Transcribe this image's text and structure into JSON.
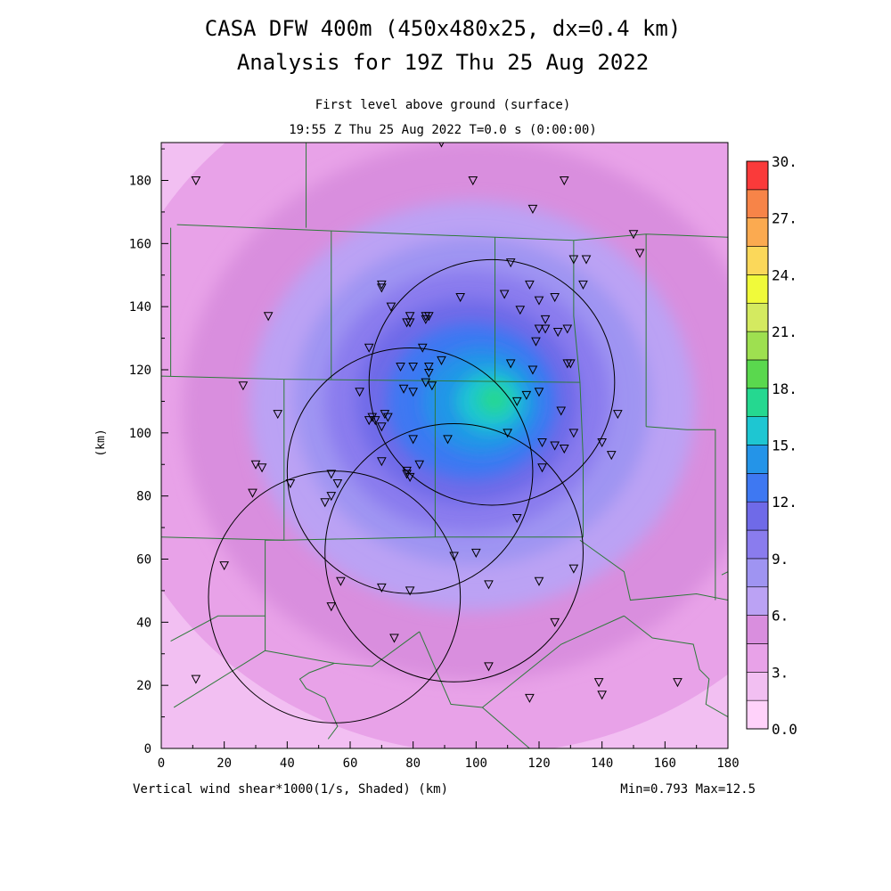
{
  "titles": {
    "line1": "CASA DFW 400m (450x480x25, dx=0.4 km)",
    "line2": "Analysis for 19Z Thu 25 Aug 2022",
    "level": "First level above ground (surface)",
    "time": "19:55 Z Thu 25 Aug 2022    T=0.0 s (0:00:00)"
  },
  "footer": {
    "field": "Vertical wind shear*1000(1/s, Shaded)  (km)",
    "minmax": "Min=0.793 Max=12.5"
  },
  "chart_data": {
    "type": "heatmap",
    "variable": "Vertical wind shear*1000 (1/s)",
    "xlabel": "",
    "ylabel": "(km)",
    "xlim": [
      0,
      180
    ],
    "ylim": [
      0,
      192
    ],
    "x_ticks": [
      0,
      20,
      40,
      60,
      80,
      100,
      120,
      140,
      160,
      180
    ],
    "y_ticks": [
      0,
      20,
      40,
      60,
      80,
      100,
      120,
      140,
      160,
      180
    ],
    "min": 0.793,
    "max": 12.5,
    "colorbar": {
      "levels": [
        0,
        1.5,
        3,
        4.5,
        6,
        7.5,
        9,
        10.5,
        12,
        13.5,
        15,
        16.5,
        18,
        19.5,
        21,
        22.5,
        24,
        25.5,
        27,
        28.5,
        30
      ],
      "labels": [
        "0.0",
        "3.",
        "6.",
        "9.",
        "12.",
        "15.",
        "18.",
        "21.",
        "24.",
        "27.",
        "30."
      ],
      "colors": [
        "#ffd2fa",
        "#f2bff2",
        "#e8a2e8",
        "#d98ede",
        "#bba2f4",
        "#9f94f2",
        "#8a7cee",
        "#6f6ae8",
        "#3e78f2",
        "#2494e8",
        "#1ec6d2",
        "#25d890",
        "#5ad84e",
        "#9ee050",
        "#d4ea60",
        "#f0fa3a",
        "#fbd85a",
        "#fbaa50",
        "#f78448",
        "#fa3a3a",
        "#fa3a82",
        "#fb82c8"
      ]
    },
    "field_blob": {
      "x": 103,
      "y": 110,
      "peak": 12.5
    },
    "radar_rings": [
      {
        "x": 79,
        "y": 88,
        "r": 39
      },
      {
        "x": 105,
        "y": 116,
        "r": 39
      },
      {
        "x": 93,
        "y": 62,
        "r": 41
      },
      {
        "x": 55,
        "y": 48,
        "r": 40
      }
    ],
    "county_lines": [
      [
        [
          0,
          184
        ],
        [
          0,
          192
        ]
      ],
      [
        [
          46,
          192
        ],
        [
          46,
          165
        ]
      ],
      [
        [
          3,
          165
        ],
        [
          3,
          118
        ]
      ],
      [
        [
          0,
          118
        ],
        [
          39,
          117
        ]
      ],
      [
        [
          5,
          166
        ],
        [
          54,
          164
        ],
        [
          106,
          162
        ],
        [
          131,
          161
        ],
        [
          154,
          163
        ],
        [
          180,
          162
        ]
      ],
      [
        [
          54,
          164
        ],
        [
          54,
          117
        ]
      ],
      [
        [
          106,
          162
        ],
        [
          106,
          116
        ]
      ],
      [
        [
          131,
          161
        ],
        [
          131,
          137
        ],
        [
          133,
          116
        ],
        [
          134,
          92
        ],
        [
          134,
          67
        ]
      ],
      [
        [
          154,
          163
        ],
        [
          154,
          102
        ]
      ],
      [
        [
          39,
          117
        ],
        [
          133,
          116
        ]
      ],
      [
        [
          39,
          117
        ],
        [
          39,
          66
        ],
        [
          0,
          67
        ]
      ],
      [
        [
          39,
          66
        ],
        [
          87,
          67
        ],
        [
          134,
          67
        ]
      ],
      [
        [
          87,
          67
        ],
        [
          87,
          116
        ]
      ],
      [
        [
          39,
          66
        ],
        [
          33,
          66
        ],
        [
          33,
          42
        ],
        [
          18,
          42
        ],
        [
          3,
          34
        ]
      ],
      [
        [
          33,
          42
        ],
        [
          33,
          31
        ],
        [
          4,
          13
        ]
      ],
      [
        [
          133,
          66
        ],
        [
          147,
          56
        ],
        [
          149,
          47
        ],
        [
          170,
          49
        ],
        [
          180,
          47
        ]
      ],
      [
        [
          154,
          102
        ],
        [
          167,
          101
        ],
        [
          176,
          101
        ],
        [
          176,
          47
        ]
      ],
      [
        [
          33,
          31
        ],
        [
          55,
          27
        ],
        [
          67,
          26
        ],
        [
          82,
          37
        ]
      ],
      [
        [
          82,
          37
        ],
        [
          92,
          14
        ],
        [
          102,
          13
        ],
        [
          127,
          33
        ],
        [
          147,
          42
        ]
      ],
      [
        [
          102,
          13
        ],
        [
          117,
          0
        ]
      ],
      [
        [
          55,
          27
        ],
        [
          47,
          24
        ],
        [
          44,
          22
        ],
        [
          46,
          19
        ],
        [
          52,
          16
        ],
        [
          56,
          7
        ],
        [
          53,
          3
        ]
      ],
      [
        [
          147,
          42
        ],
        [
          156,
          35
        ],
        [
          169,
          33
        ],
        [
          171,
          25
        ],
        [
          174,
          22
        ],
        [
          173,
          14
        ],
        [
          180,
          10
        ]
      ],
      [
        [
          0,
          42
        ],
        [
          0,
          39
        ]
      ],
      [
        [
          180,
          56
        ],
        [
          178,
          55
        ]
      ]
    ],
    "stations": [
      [
        11,
        180
      ],
      [
        89,
        192
      ],
      [
        99,
        180
      ],
      [
        128,
        180
      ],
      [
        118,
        171
      ],
      [
        150,
        163
      ],
      [
        152,
        157
      ],
      [
        111,
        154
      ],
      [
        131,
        155
      ],
      [
        135,
        155
      ],
      [
        117,
        147
      ],
      [
        134,
        147
      ],
      [
        70,
        147
      ],
      [
        70,
        146
      ],
      [
        73,
        140
      ],
      [
        95,
        143
      ],
      [
        109,
        144
      ],
      [
        114,
        139
      ],
      [
        120,
        142
      ],
      [
        125,
        143
      ],
      [
        122,
        136
      ],
      [
        120,
        133
      ],
      [
        122,
        133
      ],
      [
        126,
        132
      ],
      [
        129,
        133
      ],
      [
        119,
        129
      ],
      [
        129,
        122
      ],
      [
        130,
        122
      ],
      [
        34,
        137
      ],
      [
        79,
        137
      ],
      [
        79,
        135
      ],
      [
        84,
        137
      ],
      [
        85,
        137
      ],
      [
        84,
        136
      ],
      [
        78,
        135
      ],
      [
        66,
        127
      ],
      [
        83,
        127
      ],
      [
        89,
        123
      ],
      [
        111,
        122
      ],
      [
        118,
        120
      ],
      [
        76,
        121
      ],
      [
        80,
        121
      ],
      [
        77,
        114
      ],
      [
        80,
        113
      ],
      [
        85,
        121
      ],
      [
        85,
        119
      ],
      [
        84,
        116
      ],
      [
        86,
        115
      ],
      [
        63,
        113
      ],
      [
        116,
        112
      ],
      [
        120,
        113
      ],
      [
        113,
        110
      ],
      [
        127,
        107
      ],
      [
        26,
        115
      ],
      [
        37,
        106
      ],
      [
        67,
        105
      ],
      [
        66,
        104
      ],
      [
        68,
        104
      ],
      [
        71,
        106
      ],
      [
        72,
        105
      ],
      [
        70,
        102
      ],
      [
        145,
        106
      ],
      [
        91,
        98
      ],
      [
        80,
        98
      ],
      [
        110,
        100
      ],
      [
        131,
        100
      ],
      [
        140,
        97
      ],
      [
        121,
        97
      ],
      [
        125,
        96
      ],
      [
        128,
        95
      ],
      [
        143,
        93
      ],
      [
        70,
        91
      ],
      [
        82,
        90
      ],
      [
        121,
        89
      ],
      [
        30,
        90
      ],
      [
        32,
        89
      ],
      [
        78,
        88
      ],
      [
        78,
        87
      ],
      [
        79,
        86
      ],
      [
        54,
        87
      ],
      [
        56,
        84
      ],
      [
        41,
        84
      ],
      [
        29,
        81
      ],
      [
        54,
        80
      ],
      [
        52,
        78
      ],
      [
        113,
        73
      ],
      [
        100,
        62
      ],
      [
        93,
        61
      ],
      [
        131,
        57
      ],
      [
        20,
        58
      ],
      [
        57,
        53
      ],
      [
        120,
        53
      ],
      [
        104,
        52
      ],
      [
        70,
        51
      ],
      [
        79,
        50
      ],
      [
        54,
        45
      ],
      [
        125,
        40
      ],
      [
        74,
        35
      ],
      [
        104,
        26
      ],
      [
        11,
        22
      ],
      [
        139,
        21
      ],
      [
        140,
        17
      ],
      [
        164,
        21
      ],
      [
        117,
        16
      ]
    ]
  }
}
